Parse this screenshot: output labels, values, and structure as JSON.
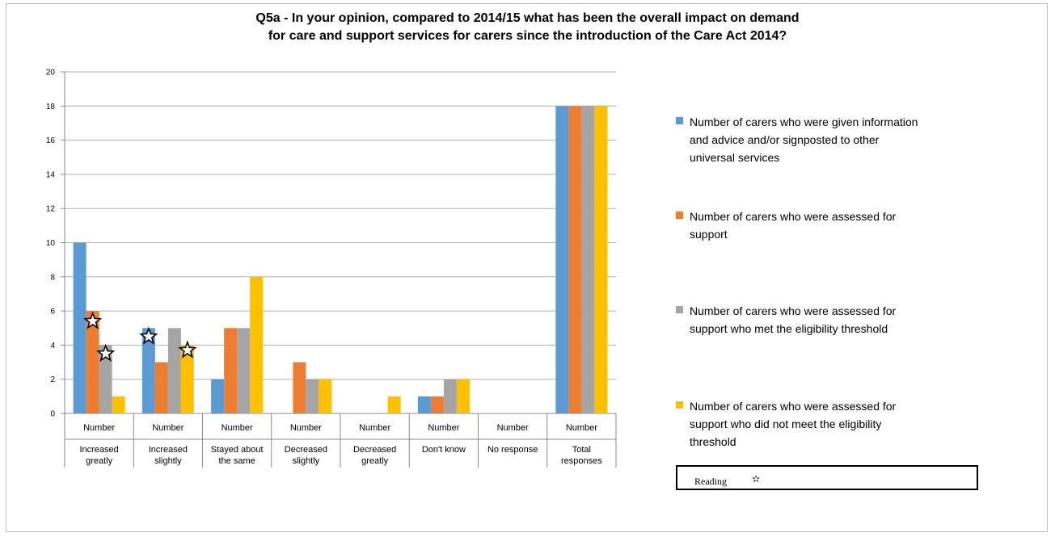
{
  "chart_data": {
    "type": "bar",
    "title_lines": [
      "Q5a  - In your opinion, compared to 2014/15 what has been the overall impact on demand",
      "for care and support services for carers since the introduction of the Care Act 2014?"
    ],
    "ylim": [
      0,
      20
    ],
    "yticks": [
      0,
      2,
      4,
      6,
      8,
      10,
      12,
      14,
      16,
      18,
      20
    ],
    "grid": true,
    "legend_position": "right",
    "categories": [
      {
        "top": "Number",
        "lines": [
          "Increased",
          "greatly"
        ]
      },
      {
        "top": "Number",
        "lines": [
          "Increased",
          "slightly"
        ]
      },
      {
        "top": "Number",
        "lines": [
          "Stayed about",
          "the same"
        ]
      },
      {
        "top": "Number",
        "lines": [
          "Decreased",
          "slightly"
        ]
      },
      {
        "top": "Number",
        "lines": [
          "Decreased",
          "greatly"
        ]
      },
      {
        "top": "Number",
        "lines": [
          "Don't know"
        ]
      },
      {
        "top": "Number",
        "lines": [
          "No response"
        ]
      },
      {
        "top": "Number",
        "lines": [
          "Total",
          "responses"
        ]
      }
    ],
    "series": [
      {
        "name": "Number of carers who were given information and advice and/or signposted to other universal services",
        "legend_lines": [
          "Number of carers who were given information",
          "and advice and/or signposted to other",
          "universal services"
        ],
        "color": "#5b9bd5",
        "values": [
          10,
          5,
          2,
          0,
          0,
          1,
          0,
          18
        ]
      },
      {
        "name": "Number of carers who were assessed for support",
        "legend_lines": [
          "Number of carers who were assessed for",
          "support"
        ],
        "color": "#ed7d31",
        "values": [
          6,
          3,
          5,
          3,
          0,
          1,
          0,
          18
        ]
      },
      {
        "name": "Number of carers who were assessed for support who met the eligibility threshold",
        "legend_lines": [
          "Number of carers who were assessed for",
          "support who met the eligibility threshold"
        ],
        "color": "#a5a5a5",
        "values": [
          4,
          5,
          5,
          2,
          0,
          2,
          0,
          18
        ]
      },
      {
        "name": "Number of carers who were assessed for support who did not meet the eligibility threshold",
        "legend_lines": [
          "Number of carers who were assessed for",
          "support who did not meet the eligibility",
          "threshold"
        ],
        "color": "#ffc000",
        "values": [
          1,
          4,
          8,
          2,
          1,
          2,
          0,
          18
        ]
      }
    ],
    "annotations": {
      "marker": "star",
      "points": [
        {
          "category": 0,
          "series": 1,
          "y": 5.4
        },
        {
          "category": 0,
          "series": 2,
          "y": 3.5
        },
        {
          "category": 1,
          "series": 0,
          "y": 4.5
        },
        {
          "category": 1,
          "series": 3,
          "y": 3.7
        }
      ]
    },
    "reading_box": {
      "label": "Reading",
      "symbol": "✫"
    }
  }
}
